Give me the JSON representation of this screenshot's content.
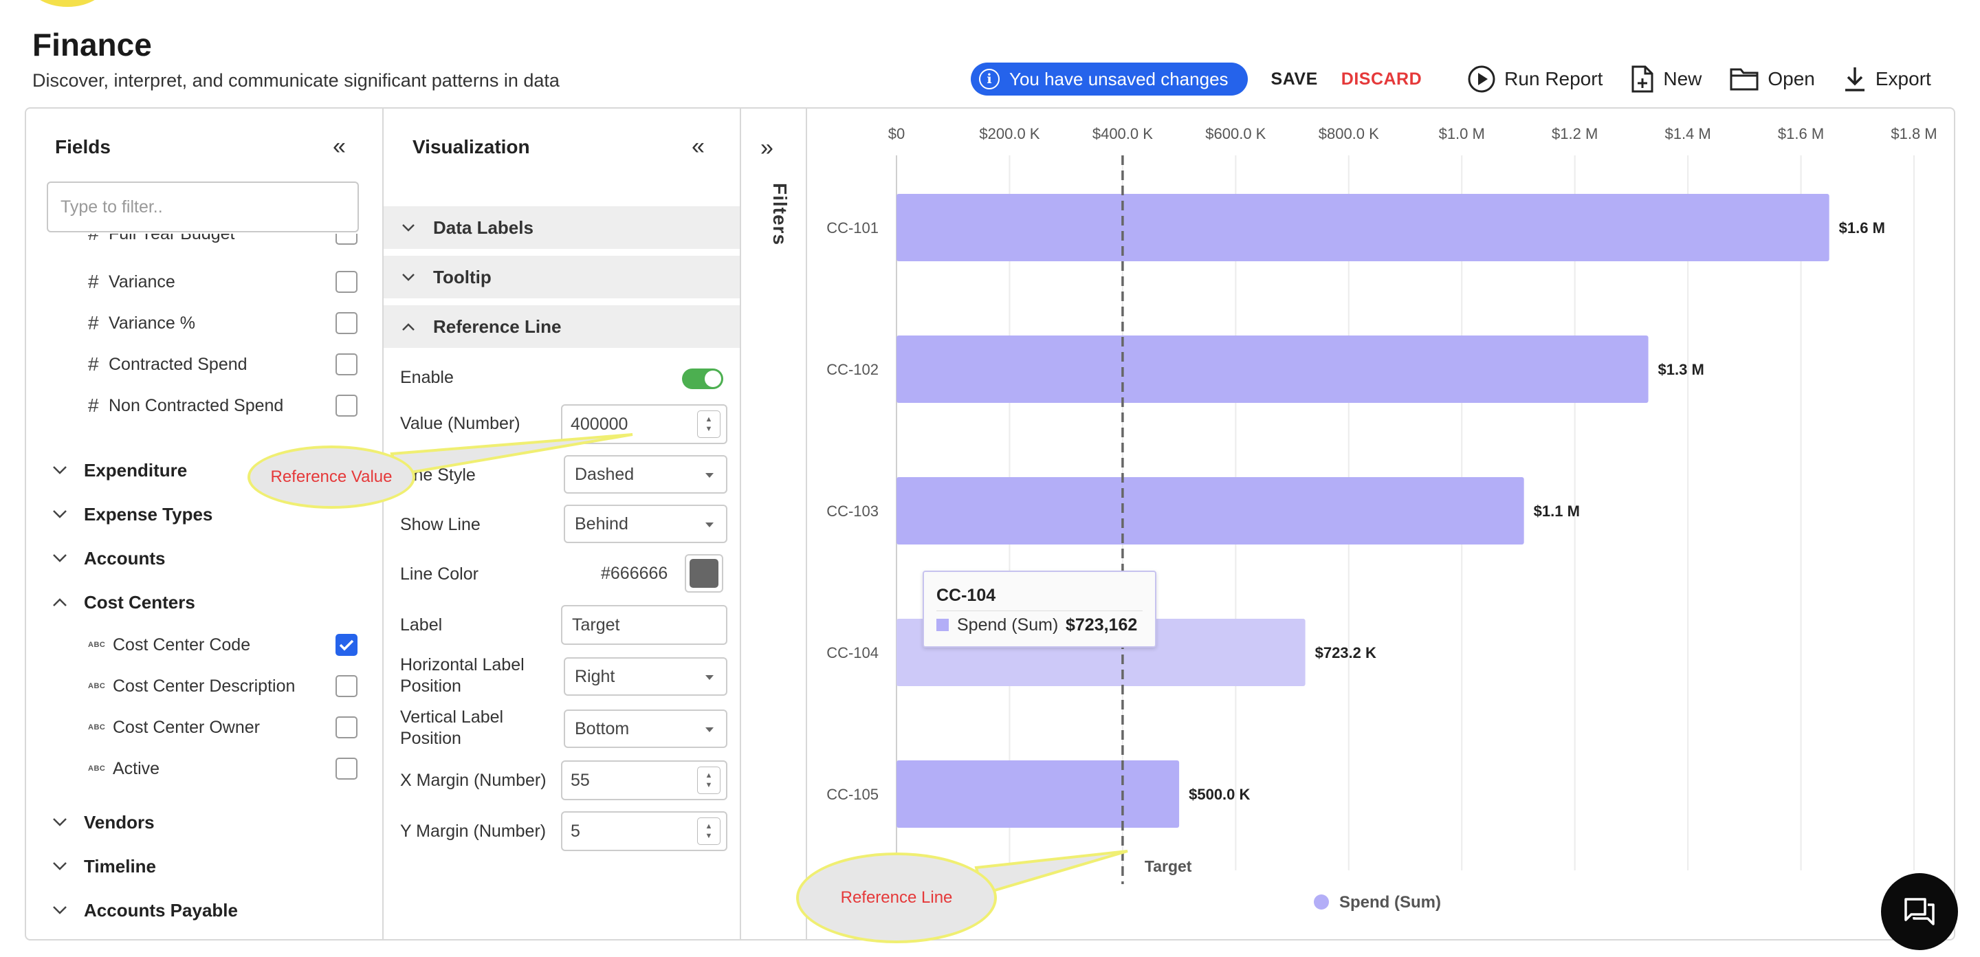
{
  "header": {
    "title": "Finance",
    "subtitle": "Discover, interpret, and communicate significant patterns in data",
    "unsaved_label": "You have unsaved changes",
    "save_label": "SAVE",
    "discard_label": "DISCARD",
    "run_report_label": "Run Report",
    "new_label": "New",
    "open_label": "Open",
    "export_label": "Export"
  },
  "fields_panel": {
    "title": "Fields",
    "filter_placeholder": "Type to filter..",
    "measure_items": [
      {
        "label": "Full Year Budget",
        "checked": false
      },
      {
        "label": "Variance",
        "checked": false
      },
      {
        "label": "Variance %",
        "checked": false
      },
      {
        "label": "Contracted Spend",
        "checked": false
      },
      {
        "label": "Non Contracted Spend",
        "checked": false
      }
    ],
    "groups": [
      {
        "label": "Expenditure",
        "expanded": false
      },
      {
        "label": "Expense Types",
        "expanded": false
      },
      {
        "label": "Accounts",
        "expanded": false
      },
      {
        "label": "Cost Centers",
        "expanded": true
      },
      {
        "label": "Vendors",
        "expanded": false
      },
      {
        "label": "Timeline",
        "expanded": false
      },
      {
        "label": "Accounts Payable",
        "expanded": false
      }
    ],
    "cost_center_items": [
      {
        "label": "Cost Center Code",
        "checked": true
      },
      {
        "label": "Cost Center Description",
        "checked": false
      },
      {
        "label": "Cost Center Owner",
        "checked": false
      },
      {
        "label": "Active",
        "checked": false
      }
    ]
  },
  "viz_panel": {
    "title": "Visualization",
    "sections": {
      "data_labels": "Data Labels",
      "tooltip": "Tooltip",
      "reference_line": "Reference Line"
    },
    "props": {
      "enable_label": "Enable",
      "enable_value": true,
      "value_label": "Value (Number)",
      "value": "400000",
      "line_style_label": "Line Style",
      "line_style_value": "Dashed",
      "show_line_label": "Show Line",
      "show_line_value": "Behind",
      "line_color_label": "Line Color",
      "line_color_value": "#666666",
      "label_label": "Label",
      "label_value": "Target",
      "h_label_pos_label": "Horizontal Label Position",
      "h_label_pos_value": "Right",
      "v_label_pos_label": "Vertical Label Position",
      "v_label_pos_value": "Bottom",
      "x_margin_label": "X Margin (Number)",
      "x_margin_value": "55",
      "y_margin_label": "Y Margin (Number)",
      "y_margin_value": "5"
    }
  },
  "filters_panel": {
    "label": "Filters"
  },
  "chart_data": {
    "type": "bar",
    "orientation": "horizontal",
    "categories": [
      "CC-101",
      "CC-102",
      "CC-103",
      "CC-104",
      "CC-105"
    ],
    "series": [
      {
        "name": "Spend (Sum)",
        "values": [
          1650000,
          1330000,
          1110000,
          723162,
          500000
        ],
        "color": "#b3aef7"
      }
    ],
    "data_labels": [
      "$1.6 M",
      "$1.3 M",
      "$1.1 M",
      "$723.2 K",
      "$500.0 K"
    ],
    "x_ticks": [
      0,
      200000,
      400000,
      600000,
      800000,
      1000000,
      1200000,
      1400000,
      1600000,
      1800000
    ],
    "x_tick_labels": [
      "$0",
      "$200.0 K",
      "$400.0 K",
      "$600.0 K",
      "$800.0 K",
      "$1.0 M",
      "$1.2 M",
      "$1.4 M",
      "$1.6 M",
      "$1.8 M"
    ],
    "xlim": [
      0,
      1800000
    ],
    "grid": true,
    "highlighted_category": "CC-104",
    "highlight_color": "#cdc9f8",
    "reference_line": {
      "value": 400000,
      "label": "Target",
      "style": "dashed",
      "color": "#666666"
    },
    "legend": {
      "position": "bottom",
      "label": "Spend (Sum)"
    }
  },
  "tooltip": {
    "title": "CC-104",
    "series": "Spend (Sum)",
    "value": "$723,162"
  },
  "callouts": {
    "reference_value": "Reference Value",
    "reference_line": "Reference Line"
  },
  "colors": {
    "accent": "#2563eb",
    "discard": "#e5393a",
    "bar": "#b3aef7",
    "toggle_on": "#4caf50",
    "callout_border": "#f0ef72"
  }
}
